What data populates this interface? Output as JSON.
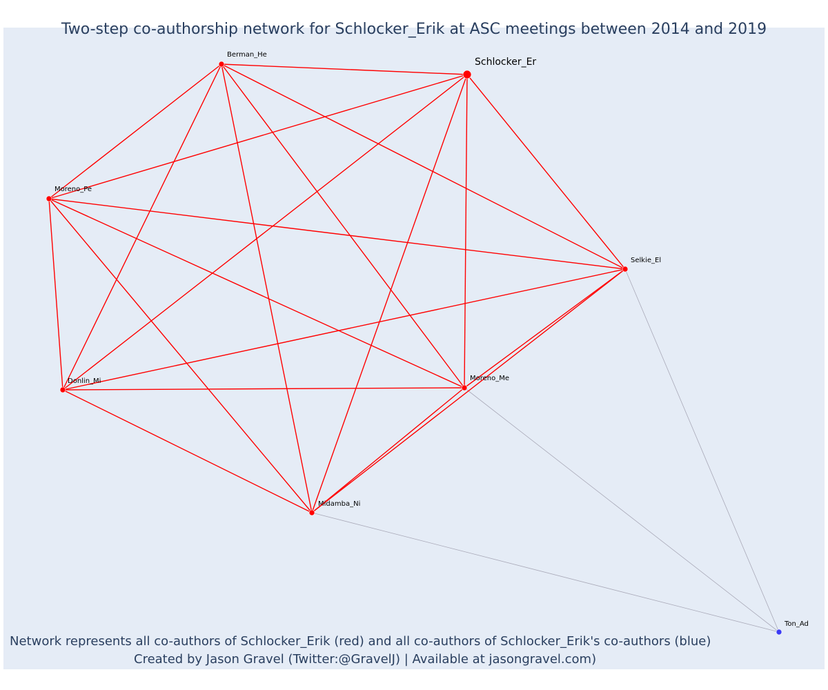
{
  "title": "Two-step co-authorship network for Schlocker_Erik at ASC meetings between 2014 and 2019",
  "footer": {
    "line1": "Network represents all co-authors of Schlocker_Erik (red) and all co-authors of Schlocker_Erik's co-authors (blue)",
    "line2": "Created by Jason Gravel (Twitter:@GravelJ) | Available at jasongravel.com)"
  },
  "colors": {
    "background": "#e5ecf6",
    "red_node": "#ff0000",
    "blue_node": "#3b3bf5",
    "red_edge": "#ff0000",
    "gray_edge": "#a9a9b8",
    "title_text": "#2a3f5f"
  },
  "chart_data": {
    "type": "network",
    "ego": "Schlocker_Er",
    "nodes": [
      {
        "id": "Schlocker_Er",
        "label": "Schlocker_Er",
        "group": "ego"
      },
      {
        "id": "Berman_He",
        "label": "Berman_He",
        "group": "co-author"
      },
      {
        "id": "Moreno_Pe",
        "label": "Moreno_Pe",
        "group": "co-author"
      },
      {
        "id": "Selkie_El",
        "label": "Selkie_El",
        "group": "co-author"
      },
      {
        "id": "Donlin_Mi",
        "label": "Donlin_Mi",
        "group": "co-author"
      },
      {
        "id": "Moreno_Me",
        "label": "Moreno_Me",
        "group": "co-author"
      },
      {
        "id": "Midamba_Ni",
        "label": "Midamba_Ni",
        "group": "co-author"
      },
      {
        "id": "Ton_Ad",
        "label": "Ton_Ad",
        "group": "second-step"
      }
    ],
    "edges": [
      {
        "source": "Schlocker_Er",
        "target": "Berman_He",
        "type": "red"
      },
      {
        "source": "Schlocker_Er",
        "target": "Moreno_Pe",
        "type": "red"
      },
      {
        "source": "Schlocker_Er",
        "target": "Selkie_El",
        "type": "red"
      },
      {
        "source": "Schlocker_Er",
        "target": "Donlin_Mi",
        "type": "red"
      },
      {
        "source": "Schlocker_Er",
        "target": "Moreno_Me",
        "type": "red"
      },
      {
        "source": "Schlocker_Er",
        "target": "Midamba_Ni",
        "type": "red"
      },
      {
        "source": "Berman_He",
        "target": "Moreno_Pe",
        "type": "red"
      },
      {
        "source": "Berman_He",
        "target": "Selkie_El",
        "type": "red"
      },
      {
        "source": "Berman_He",
        "target": "Donlin_Mi",
        "type": "red"
      },
      {
        "source": "Berman_He",
        "target": "Moreno_Me",
        "type": "red"
      },
      {
        "source": "Berman_He",
        "target": "Midamba_Ni",
        "type": "red"
      },
      {
        "source": "Moreno_Pe",
        "target": "Selkie_El",
        "type": "red"
      },
      {
        "source": "Moreno_Pe",
        "target": "Donlin_Mi",
        "type": "red"
      },
      {
        "source": "Moreno_Pe",
        "target": "Moreno_Me",
        "type": "red"
      },
      {
        "source": "Moreno_Pe",
        "target": "Midamba_Ni",
        "type": "red"
      },
      {
        "source": "Selkie_El",
        "target": "Donlin_Mi",
        "type": "red"
      },
      {
        "source": "Selkie_El",
        "target": "Moreno_Me",
        "type": "red"
      },
      {
        "source": "Selkie_El",
        "target": "Midamba_Ni",
        "type": "red"
      },
      {
        "source": "Donlin_Mi",
        "target": "Moreno_Me",
        "type": "red"
      },
      {
        "source": "Donlin_Mi",
        "target": "Midamba_Ni",
        "type": "red"
      },
      {
        "source": "Moreno_Me",
        "target": "Midamba_Ni",
        "type": "red"
      },
      {
        "source": "Selkie_El",
        "target": "Ton_Ad",
        "type": "gray"
      },
      {
        "source": "Moreno_Me",
        "target": "Ton_Ad",
        "type": "gray"
      },
      {
        "source": "Midamba_Ni",
        "target": "Ton_Ad",
        "type": "gray"
      }
    ]
  }
}
